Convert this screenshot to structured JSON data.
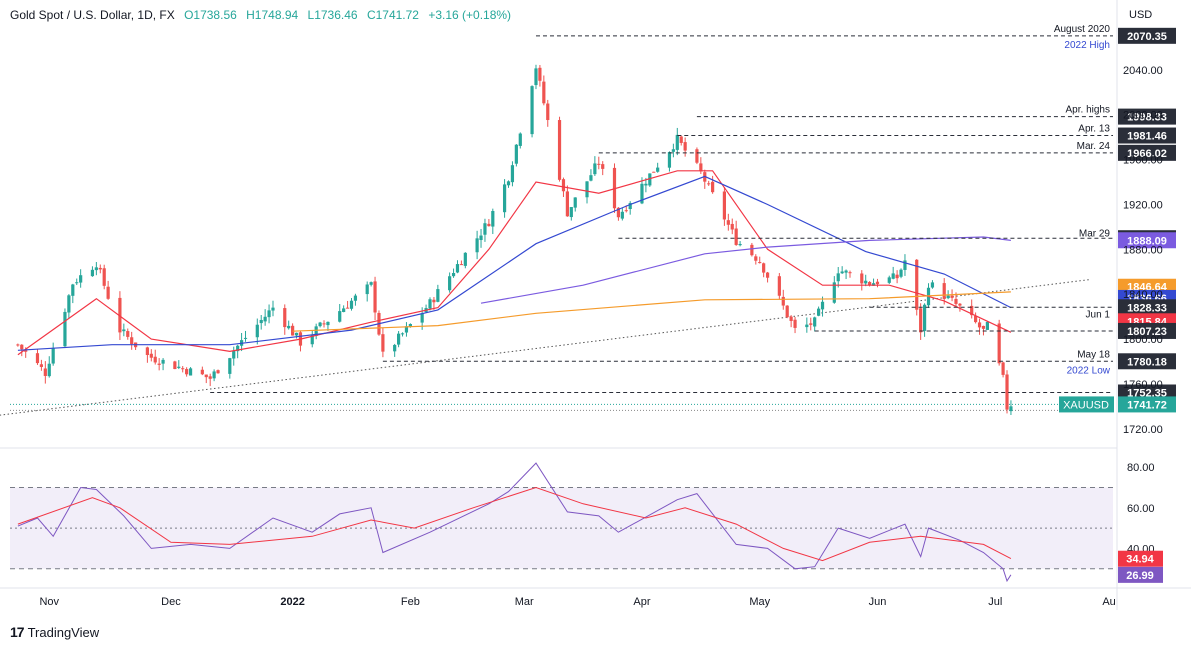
{
  "header": {
    "symbol": "Gold Spot / U.S. Dollar, 1D, FX",
    "open": "O1738.56",
    "high": "H1748.94",
    "low": "L1736.46",
    "close": "C1741.72",
    "change": "+3.16 (+0.18%)"
  },
  "brand": {
    "name": "TradingView"
  },
  "colors": {
    "up": "#26a69a",
    "down": "#ef5350",
    "ema20": "#f23645",
    "ema50": "#3449d1",
    "ema100": "#7b5be0",
    "ema200": "#f59b2b",
    "rsi": "#7e57c2",
    "rsi_ma": "#f23645"
  },
  "chart_data": [
    {
      "type": "candlestick",
      "title": "",
      "y_unit": "USD",
      "ylim": [
        1710,
        2080
      ],
      "x_months": [
        "Nov",
        "Dec",
        "2022",
        "Feb",
        "Mar",
        "Apr",
        "May",
        "Jun",
        "Jul",
        "Au"
      ],
      "y_ticks": [
        1720.0,
        1760.0,
        1800.0,
        1840.0,
        1880.0,
        1920.0,
        1960.0,
        2000.0,
        2040.0
      ],
      "anchors": [
        {
          "date": "2021-10-27",
          "price": 1795
        },
        {
          "date": "2021-11-03",
          "price": 1770
        },
        {
          "date": "2021-11-10",
          "price": 1850
        },
        {
          "date": "2021-11-16",
          "price": 1868
        },
        {
          "date": "2021-11-22",
          "price": 1808
        },
        {
          "date": "2021-11-29",
          "price": 1785
        },
        {
          "date": "2021-12-15",
          "price": 1765
        },
        {
          "date": "2021-12-21",
          "price": 1790
        },
        {
          "date": "2021-12-31",
          "price": 1828
        },
        {
          "date": "2022-01-07",
          "price": 1797
        },
        {
          "date": "2022-01-25",
          "price": 1848
        },
        {
          "date": "2022-01-28",
          "price": 1785
        },
        {
          "date": "2022-02-09",
          "price": 1832
        },
        {
          "date": "2022-02-24",
          "price": 1905
        },
        {
          "date": "2022-03-01",
          "price": 1945
        },
        {
          "date": "2022-03-08",
          "price": 2043
        },
        {
          "date": "2022-03-16",
          "price": 1913
        },
        {
          "date": "2022-03-24",
          "price": 1958
        },
        {
          "date": "2022-03-29",
          "price": 1910
        },
        {
          "date": "2022-04-13",
          "price": 1978
        },
        {
          "date": "2022-04-19",
          "price": 1948
        },
        {
          "date": "2022-04-28",
          "price": 1888
        },
        {
          "date": "2022-05-04",
          "price": 1870
        },
        {
          "date": "2022-05-13",
          "price": 1808
        },
        {
          "date": "2022-05-18",
          "price": 1815
        },
        {
          "date": "2022-05-24",
          "price": 1862
        },
        {
          "date": "2022-06-01",
          "price": 1850
        },
        {
          "date": "2022-06-08",
          "price": 1855
        },
        {
          "date": "2022-06-10",
          "price": 1870
        },
        {
          "date": "2022-06-14",
          "price": 1808
        },
        {
          "date": "2022-06-16",
          "price": 1850
        },
        {
          "date": "2022-06-24",
          "price": 1828
        },
        {
          "date": "2022-06-30",
          "price": 1807
        },
        {
          "date": "2022-07-01",
          "price": 1811
        },
        {
          "date": "2022-07-05",
          "price": 1764
        },
        {
          "date": "2022-07-06",
          "price": 1739
        },
        {
          "date": "2022-07-07",
          "price": 1742
        }
      ],
      "ema_series": [
        {
          "points": [
            [
              "2021-10-27",
              1786
            ],
            [
              "2021-11-16",
              1836
            ],
            [
              "2021-11-30",
              1800
            ],
            [
              "2021-12-20",
              1789
            ],
            [
              "2022-01-07",
              1800
            ],
            [
              "2022-01-25",
              1815
            ],
            [
              "2022-02-11",
              1828
            ],
            [
              "2022-02-24",
              1880
            ],
            [
              "2022-03-08",
              1940
            ],
            [
              "2022-03-24",
              1930
            ],
            [
              "2022-04-13",
              1950
            ],
            [
              "2022-04-22",
              1950
            ],
            [
              "2022-05-06",
              1880
            ],
            [
              "2022-05-20",
              1848
            ],
            [
              "2022-06-06",
              1848
            ],
            [
              "2022-06-20",
              1834
            ],
            [
              "2022-07-07",
              1806
            ]
          ]
        },
        {
          "points": [
            [
              "2021-10-27",
              1790
            ],
            [
              "2021-11-20",
              1795
            ],
            [
              "2021-12-20",
              1795
            ],
            [
              "2022-01-20",
              1808
            ],
            [
              "2022-02-11",
              1826
            ],
            [
              "2022-03-08",
              1885
            ],
            [
              "2022-04-01",
              1920
            ],
            [
              "2022-04-20",
              1945
            ],
            [
              "2022-05-06",
              1920
            ],
            [
              "2022-05-31",
              1878
            ],
            [
              "2022-06-20",
              1858
            ],
            [
              "2022-07-07",
              1828
            ]
          ]
        },
        {
          "points": [
            [
              "2022-02-22",
              1832
            ],
            [
              "2022-03-20",
              1848
            ],
            [
              "2022-04-20",
              1876
            ],
            [
              "2022-05-06",
              1882
            ],
            [
              "2022-06-01",
              1888
            ],
            [
              "2022-06-30",
              1891
            ],
            [
              "2022-07-07",
              1888
            ]
          ]
        },
        {
          "points": [
            [
              "2022-01-05",
              1807
            ],
            [
              "2022-02-11",
              1812
            ],
            [
              "2022-03-08",
              1823
            ],
            [
              "2022-04-20",
              1835
            ],
            [
              "2022-06-01",
              1836
            ],
            [
              "2022-07-07",
              1842
            ]
          ]
        }
      ],
      "trendline": {
        "start": [
          "2021-09-20",
          1718
        ],
        "end": [
          "2022-07-27",
          1853
        ]
      },
      "levels": [
        {
          "price": 2070.35,
          "label": "2070.35",
          "note": "August 2020",
          "note2": "2022 High",
          "color": "#2a2e39",
          "start": "2022-03-08"
        },
        {
          "price": 1998.33,
          "label": "1998.33",
          "note": "Apr. highs",
          "color": "#2a2e39",
          "start": "2022-04-18"
        },
        {
          "price": 1981.46,
          "label": "1981.46",
          "note": "Apr. 13",
          "color": "#2a2e39",
          "start": "2022-04-13"
        },
        {
          "price": 1966.02,
          "label": "1966.02",
          "note": "Mar. 24",
          "color": "#2a2e39",
          "start": "2022-03-24"
        },
        {
          "price": 1889.91,
          "label": "1889.91",
          "note": "",
          "color": "#2a2e39",
          "start": "2022-03-29"
        },
        {
          "price": 1888.09,
          "label": "1888.09",
          "note": "Mar 29",
          "color": "#7b5be0",
          "start": null
        },
        {
          "price": 1846.64,
          "label": "1846.64",
          "note": "",
          "color": "#f59b2b",
          "start": null
        },
        {
          "price": 1836.66,
          "label": "1836.66",
          "note": "",
          "color": "#3449d1",
          "start": null
        },
        {
          "price": 1828.33,
          "label": "1828.33",
          "note": "",
          "color": "#2a2e39",
          "start": "2022-06-01"
        },
        {
          "price": 1815.84,
          "label": "1815.84",
          "note": "Jun 1",
          "color": "#f23645",
          "start": null
        },
        {
          "price": 1807.23,
          "label": "1807.23",
          "note": "",
          "color": "#2a2e39",
          "start": "2022-05-18"
        },
        {
          "price": 1780.18,
          "label": "1780.18",
          "note": "May 18",
          "note2": "2022 Low",
          "color": "#2a2e39",
          "start": "2022-01-28"
        },
        {
          "price": 1752.35,
          "label": "1752.35",
          "note": "",
          "color": "#2a2e39",
          "start": "2021-12-15"
        },
        {
          "price": 1741.72,
          "label": "1741.72",
          "note": "",
          "color": "#26a69a",
          "start": null,
          "tag": "XAUUSD"
        }
      ]
    },
    {
      "type": "line",
      "title": "",
      "ylim": [
        22,
        86
      ],
      "y_ticks": [
        40.0,
        60.0,
        80.0
      ],
      "bands": [
        30,
        50,
        70
      ],
      "series": [
        {
          "points": [
            [
              "2021-10-27",
              51
            ],
            [
              "2021-11-01",
              55
            ],
            [
              "2021-11-05",
              46
            ],
            [
              "2021-11-12",
              70
            ],
            [
              "2021-11-16",
              69
            ],
            [
              "2021-11-23",
              56
            ],
            [
              "2021-11-30",
              40
            ],
            [
              "2021-12-10",
              42
            ],
            [
              "2021-12-20",
              40
            ],
            [
              "2021-12-31",
              55
            ],
            [
              "2022-01-10",
              48
            ],
            [
              "2022-01-17",
              57
            ],
            [
              "2022-01-25",
              60
            ],
            [
              "2022-01-28",
              38
            ],
            [
              "2022-02-09",
              48
            ],
            [
              "2022-02-24",
              62
            ],
            [
              "2022-03-01",
              68
            ],
            [
              "2022-03-08",
              82
            ],
            [
              "2022-03-16",
              58
            ],
            [
              "2022-03-24",
              56
            ],
            [
              "2022-03-29",
              48
            ],
            [
              "2022-04-13",
              64
            ],
            [
              "2022-04-18",
              67
            ],
            [
              "2022-04-28",
              42
            ],
            [
              "2022-05-06",
              40
            ],
            [
              "2022-05-13",
              30
            ],
            [
              "2022-05-18",
              31
            ],
            [
              "2022-05-24",
              50
            ],
            [
              "2022-06-01",
              45
            ],
            [
              "2022-06-10",
              52
            ],
            [
              "2022-06-14",
              36
            ],
            [
              "2022-06-16",
              50
            ],
            [
              "2022-06-24",
              44
            ],
            [
              "2022-06-30",
              38
            ],
            [
              "2022-07-05",
              30
            ],
            [
              "2022-07-06",
              24
            ],
            [
              "2022-07-07",
              27
            ]
          ]
        },
        {
          "points": [
            [
              "2021-10-27",
              52
            ],
            [
              "2021-11-15",
              65
            ],
            [
              "2021-11-22",
              60
            ],
            [
              "2021-12-05",
              43
            ],
            [
              "2021-12-20",
              42
            ],
            [
              "2022-01-10",
              46
            ],
            [
              "2022-01-25",
              54
            ],
            [
              "2022-02-05",
              50
            ],
            [
              "2022-02-20",
              60
            ],
            [
              "2022-03-08",
              70
            ],
            [
              "2022-03-20",
              62
            ],
            [
              "2022-04-05",
              55
            ],
            [
              "2022-04-15",
              60
            ],
            [
              "2022-04-28",
              52
            ],
            [
              "2022-05-10",
              40
            ],
            [
              "2022-05-20",
              34
            ],
            [
              "2022-06-01",
              43
            ],
            [
              "2022-06-14",
              46
            ],
            [
              "2022-06-30",
              42
            ],
            [
              "2022-07-07",
              35
            ]
          ]
        }
      ]
    }
  ],
  "labels": {
    "rsi_tag": "26.99",
    "rsi_ma_tag": "34.94",
    "currency": "USD"
  }
}
